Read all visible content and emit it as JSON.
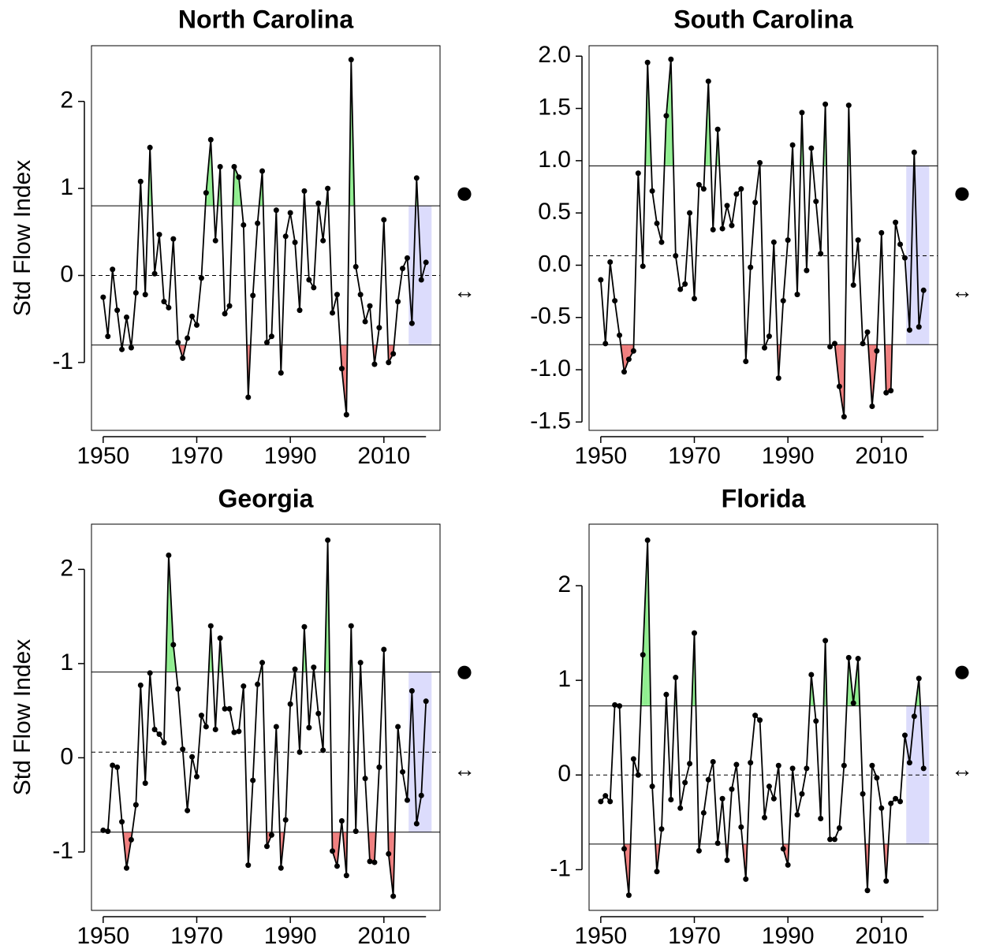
{
  "chart_data": [
    {
      "type": "line",
      "title": "North Carolina",
      "ylabel": "Std Flow Index",
      "status_symbol": "●",
      "trend_symbol": "↔",
      "x": [
        1950,
        1951,
        1952,
        1953,
        1954,
        1955,
        1956,
        1957,
        1958,
        1959,
        1960,
        1961,
        1962,
        1963,
        1964,
        1965,
        1966,
        1967,
        1968,
        1969,
        1970,
        1971,
        1972,
        1973,
        1974,
        1975,
        1976,
        1977,
        1978,
        1979,
        1980,
        1981,
        1982,
        1983,
        1984,
        1985,
        1986,
        1987,
        1988,
        1989,
        1990,
        1991,
        1992,
        1993,
        1994,
        1995,
        1996,
        1997,
        1998,
        1999,
        2000,
        2001,
        2002,
        2003,
        2004,
        2005,
        2006,
        2007,
        2008,
        2009,
        2010,
        2011,
        2012,
        2013,
        2014,
        2015,
        2016,
        2017,
        2018,
        2019
      ],
      "values": [
        -0.25,
        -0.7,
        0.07,
        -0.4,
        -0.85,
        -0.48,
        -0.83,
        -0.2,
        1.08,
        -0.22,
        1.47,
        0.02,
        0.47,
        -0.3,
        -0.37,
        0.42,
        -0.77,
        -0.95,
        -0.72,
        -0.47,
        -0.57,
        -0.03,
        0.95,
        1.56,
        0.4,
        1.25,
        -0.44,
        -0.35,
        1.25,
        1.13,
        0.58,
        -1.4,
        -0.23,
        0.6,
        1.2,
        -0.77,
        -0.7,
        0.75,
        -1.12,
        0.45,
        0.72,
        0.38,
        -0.4,
        0.97,
        -0.05,
        -0.14,
        0.83,
        0.4,
        1.0,
        -0.43,
        -0.22,
        -1.07,
        -1.6,
        2.48,
        0.1,
        -0.22,
        -0.53,
        -0.35,
        -1.02,
        -0.6,
        0.64,
        -1.0,
        -0.9,
        -0.3,
        0.08,
        0.2,
        -0.55,
        1.12,
        -0.05,
        0.15
      ],
      "upper_threshold": 0.8,
      "lower_threshold": -0.8,
      "mean": 0,
      "highlight_period": [
        2015.3,
        2020.2
      ],
      "xlim": [
        1947.5,
        2022
      ],
      "xticks": [
        1950,
        1970,
        1990,
        2010
      ],
      "ylim": [
        -1.78,
        2.64
      ],
      "yticks": [
        -1,
        0,
        1,
        2
      ],
      "color": "#000000",
      "above_color": "#90ee90",
      "below_color": "#f08080",
      "highlight_color": "#dcdcfc"
    },
    {
      "type": "line",
      "title": "South Carolina",
      "status_symbol": "●",
      "trend_symbol": "↔",
      "x": [
        1950,
        1951,
        1952,
        1953,
        1954,
        1955,
        1956,
        1957,
        1958,
        1959,
        1960,
        1961,
        1962,
        1963,
        1964,
        1965,
        1966,
        1967,
        1968,
        1969,
        1970,
        1971,
        1972,
        1973,
        1974,
        1975,
        1976,
        1977,
        1978,
        1979,
        1980,
        1981,
        1982,
        1983,
        1984,
        1985,
        1986,
        1987,
        1988,
        1989,
        1990,
        1991,
        1992,
        1993,
        1994,
        1995,
        1996,
        1997,
        1998,
        1999,
        2000,
        2001,
        2002,
        2003,
        2004,
        2005,
        2006,
        2007,
        2008,
        2009,
        2010,
        2011,
        2012,
        2013,
        2014,
        2015,
        2016,
        2017,
        2018,
        2019
      ],
      "values": [
        -0.14,
        -0.75,
        0.03,
        -0.34,
        -0.67,
        -1.02,
        -0.9,
        -0.82,
        0.88,
        -0.01,
        1.94,
        0.71,
        0.4,
        0.22,
        1.43,
        1.97,
        0.09,
        -0.23,
        -0.18,
        0.5,
        -0.32,
        0.77,
        0.73,
        1.76,
        0.34,
        1.3,
        0.35,
        0.57,
        0.38,
        0.68,
        0.73,
        -0.92,
        -0.02,
        0.6,
        0.98,
        -0.79,
        -0.68,
        0.22,
        -1.08,
        -0.34,
        0.24,
        1.15,
        -0.28,
        1.46,
        -0.05,
        1.12,
        0.61,
        0.11,
        1.54,
        -0.78,
        -0.75,
        -1.16,
        -1.45,
        1.53,
        -0.19,
        0.24,
        -0.75,
        -0.64,
        -1.35,
        -0.82,
        0.31,
        -1.22,
        -1.2,
        0.41,
        0.2,
        0.07,
        -0.62,
        1.08,
        -0.59,
        -0.24
      ],
      "upper_threshold": 0.95,
      "lower_threshold": -0.76,
      "mean": 0.09,
      "highlight_period": [
        2015.3,
        2020.2
      ],
      "xlim": [
        1947.5,
        2022
      ],
      "xticks": [
        1950,
        1970,
        1990,
        2010
      ],
      "ylim": [
        -1.58,
        2.1
      ],
      "yticks": [
        {
          "value": -1.5,
          "label": "-1.5"
        },
        {
          "value": -1,
          "label": "-1.0"
        },
        -0.5,
        {
          "value": 0,
          "label": "0.0"
        },
        0.5,
        {
          "value": 1,
          "label": "1.0"
        },
        1.5,
        {
          "value": 2,
          "label": "2.0"
        }
      ],
      "color": "#000000",
      "above_color": "#90ee90",
      "below_color": "#f08080",
      "highlight_color": "#dcdcfc"
    },
    {
      "type": "line",
      "title": "Georgia",
      "ylabel": "Std Flow Index",
      "status_symbol": "●",
      "trend_symbol": "↔",
      "x": [
        1950,
        1951,
        1952,
        1953,
        1954,
        1955,
        1956,
        1957,
        1958,
        1959,
        1960,
        1961,
        1962,
        1963,
        1964,
        1965,
        1966,
        1967,
        1968,
        1969,
        1970,
        1971,
        1972,
        1973,
        1974,
        1975,
        1976,
        1977,
        1978,
        1979,
        1980,
        1981,
        1982,
        1983,
        1984,
        1985,
        1986,
        1987,
        1988,
        1989,
        1990,
        1991,
        1992,
        1993,
        1994,
        1995,
        1996,
        1997,
        1998,
        1999,
        2000,
        2001,
        2002,
        2003,
        2004,
        2005,
        2006,
        2007,
        2008,
        2009,
        2010,
        2011,
        2012,
        2013,
        2014,
        2015,
        2016,
        2017,
        2018,
        2019
      ],
      "values": [
        -0.77,
        -0.78,
        -0.08,
        -0.1,
        -0.68,
        -1.17,
        -0.87,
        -0.5,
        0.77,
        -0.27,
        0.9,
        0.3,
        0.25,
        0.16,
        2.15,
        1.2,
        0.73,
        0.09,
        -0.56,
        0.01,
        -0.2,
        0.45,
        0.33,
        1.4,
        0.3,
        1.27,
        0.52,
        0.52,
        0.27,
        0.28,
        0.76,
        -1.14,
        -0.24,
        0.78,
        1.01,
        -0.94,
        -0.82,
        0.33,
        -1.17,
        -0.66,
        0.57,
        0.94,
        0.06,
        1.39,
        0.32,
        0.96,
        0.47,
        0.08,
        2.31,
        -0.99,
        -1.15,
        -0.67,
        -1.25,
        1.4,
        -0.78,
        1.01,
        -0.22,
        -1.1,
        -1.11,
        -0.1,
        1.15,
        -1.02,
        -1.47,
        0.33,
        -0.15,
        -0.45,
        0.71,
        -0.7,
        -0.4,
        0.6
      ],
      "upper_threshold": 0.91,
      "lower_threshold": -0.79,
      "mean": 0.06,
      "highlight_period": [
        2015.3,
        2020.2
      ],
      "xlim": [
        1947.5,
        2022
      ],
      "xticks": [
        1950,
        1970,
        1990,
        2010
      ],
      "ylim": [
        -1.62,
        2.48
      ],
      "yticks": [
        -1,
        0,
        1,
        2
      ],
      "color": "#000000",
      "above_color": "#90ee90",
      "below_color": "#f08080",
      "highlight_color": "#dcdcfc"
    },
    {
      "type": "line",
      "title": "Florida",
      "status_symbol": "●",
      "trend_symbol": "↔",
      "x": [
        1950,
        1951,
        1952,
        1953,
        1954,
        1955,
        1956,
        1957,
        1958,
        1959,
        1960,
        1961,
        1962,
        1963,
        1964,
        1965,
        1966,
        1967,
        1968,
        1969,
        1970,
        1971,
        1972,
        1973,
        1974,
        1975,
        1976,
        1977,
        1978,
        1979,
        1980,
        1981,
        1982,
        1983,
        1984,
        1985,
        1986,
        1987,
        1988,
        1989,
        1990,
        1991,
        1992,
        1993,
        1994,
        1995,
        1996,
        1997,
        1998,
        1999,
        2000,
        2001,
        2002,
        2003,
        2004,
        2005,
        2006,
        2007,
        2008,
        2009,
        2010,
        2011,
        2012,
        2013,
        2014,
        2015,
        2016,
        2017,
        2018,
        2019
      ],
      "values": [
        -0.28,
        -0.22,
        -0.28,
        0.74,
        0.73,
        -0.78,
        -1.27,
        0.17,
        0.0,
        1.27,
        2.48,
        -0.12,
        -1.02,
        -0.57,
        0.85,
        -0.26,
        1.03,
        -0.35,
        -0.08,
        0.12,
        1.5,
        -0.8,
        -0.4,
        -0.05,
        0.14,
        -0.72,
        -0.25,
        -0.9,
        -0.15,
        0.11,
        -0.55,
        -1.1,
        0.13,
        0.63,
        0.58,
        -0.45,
        -0.12,
        -0.25,
        0.1,
        -0.78,
        -0.95,
        0.07,
        -0.42,
        -0.2,
        0.07,
        1.06,
        0.57,
        -0.46,
        1.42,
        -0.68,
        -0.68,
        -0.56,
        0.1,
        1.24,
        0.76,
        1.23,
        -0.2,
        -1.22,
        0.1,
        -0.03,
        -0.35,
        -1.12,
        -0.3,
        -0.25,
        -0.28,
        0.42,
        0.13,
        0.62,
        1.02,
        0.07
      ],
      "upper_threshold": 0.73,
      "lower_threshold": -0.73,
      "mean": 0,
      "highlight_period": [
        2015.3,
        2020.2
      ],
      "xlim": [
        1947.5,
        2022
      ],
      "xticks": [
        1950,
        1970,
        1990,
        2010
      ],
      "ylim": [
        -1.43,
        2.65
      ],
      "yticks": [
        -1,
        0,
        1,
        2
      ],
      "color": "#000000",
      "above_color": "#90ee90",
      "below_color": "#f08080",
      "highlight_color": "#dcdcfc"
    }
  ]
}
